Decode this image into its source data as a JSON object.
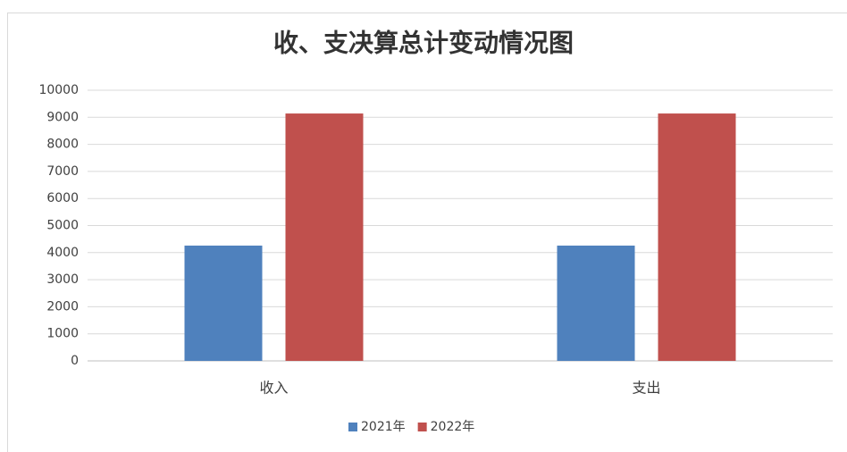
{
  "chart_data": {
    "type": "bar",
    "title": "收、支决算总计变动情况图",
    "categories": [
      "收入",
      "支出"
    ],
    "series": [
      {
        "name": "2021年",
        "color": "#4f81bd",
        "values": [
          4260,
          4260
        ]
      },
      {
        "name": "2022年",
        "color": "#c0504d",
        "values": [
          9140,
          9140
        ]
      }
    ],
    "ylim": [
      0,
      10000
    ],
    "yticks": [
      0,
      1000,
      2000,
      3000,
      4000,
      5000,
      6000,
      7000,
      8000,
      9000,
      10000
    ],
    "grid": true,
    "legend": "bottom"
  }
}
